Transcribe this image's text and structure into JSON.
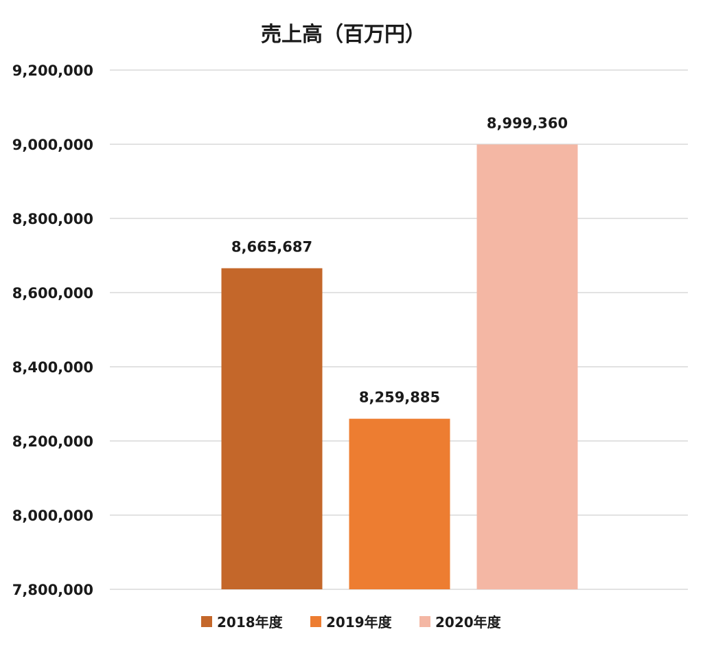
{
  "chart_data": {
    "type": "bar",
    "title": "売上高（百万円）",
    "xlabel": "",
    "ylabel": "",
    "categories": [
      "2018年度",
      "2019年度",
      "2020年度"
    ],
    "values": [
      8665687,
      8259885,
      8999360
    ],
    "data_labels": [
      "8,665,687",
      "8,259,885",
      "8,999,360"
    ],
    "colors": [
      "#C4672A",
      "#ED7D31",
      "#F4B7A4"
    ],
    "ylim": [
      7800000,
      9200000
    ],
    "yticks": [
      7800000,
      8000000,
      8200000,
      8400000,
      8600000,
      8800000,
      9000000,
      9200000
    ],
    "ytick_labels": [
      "7,800,000",
      "8,000,000",
      "8,200,000",
      "8,400,000",
      "8,600,000",
      "8,800,000",
      "9,000,000",
      "9,200,000"
    ],
    "grid": true,
    "legend": {
      "placement": "bottom",
      "entries": [
        "2018年度",
        "2019年度",
        "2020年度"
      ]
    }
  }
}
